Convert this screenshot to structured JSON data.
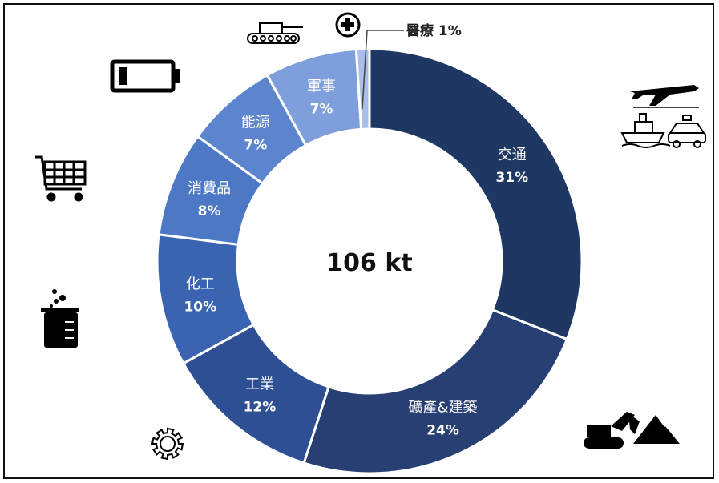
{
  "chart_data": {
    "type": "donut",
    "center_label": "106 kt",
    "slices": [
      {
        "label": "交通",
        "pct_label": "31%",
        "value": 31,
        "color": "#1f3863",
        "icon": "transport-icon"
      },
      {
        "label": "礦產&建築",
        "pct_label": "24%",
        "value": 24,
        "color": "#273f72",
        "icon": "mining-construction-icon"
      },
      {
        "label": "工業",
        "pct_label": "12%",
        "value": 12,
        "color": "#2f4f95",
        "icon": "gear-icon"
      },
      {
        "label": "化工",
        "pct_label": "10%",
        "value": 10,
        "color": "#3a63b2",
        "icon": "beaker-icon"
      },
      {
        "label": "消費品",
        "pct_label": "8%",
        "value": 8,
        "color": "#4c78c6",
        "icon": "shopping-cart-icon"
      },
      {
        "label": "能源",
        "pct_label": "7%",
        "value": 7,
        "color": "#5d85cf",
        "icon": "battery-icon"
      },
      {
        "label": "軍事",
        "pct_label": "7%",
        "value": 7,
        "color": "#7e9fdb",
        "icon": "tank-icon"
      },
      {
        "label": "醫療",
        "pct_label": "1%",
        "value": 1,
        "color": "#a9bee8",
        "icon": "medical-cross-icon"
      }
    ],
    "callout": "醫療 1%"
  }
}
